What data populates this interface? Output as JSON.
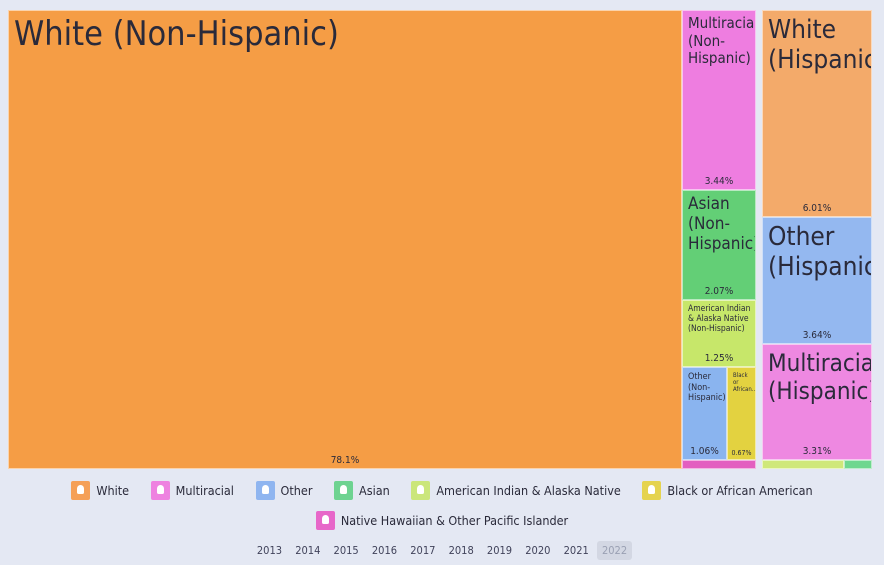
{
  "chart_data": {
    "type": "treemap",
    "cells": [
      {
        "label": "White (Non-Hispanic)",
        "value_label": "78.1%",
        "value": 78.1,
        "color": "#f59d45"
      },
      {
        "label": "Multiracial (Non-Hispanic)",
        "value_label": "3.44%",
        "value": 3.44,
        "color": "#ee7de0"
      },
      {
        "label": "Asian (Non-Hispanic)",
        "value_label": "2.07%",
        "value": 2.07,
        "color": "#63cf76"
      },
      {
        "label": "American Indian & Alaska Native (Non-Hispanic)",
        "value_label": "1.25%",
        "value": 1.25,
        "color": "#c7e76a"
      },
      {
        "label": "Other (Non-Hispanic)",
        "value_label": "1.06%",
        "value": 1.06,
        "color": "#8ab4ef"
      },
      {
        "label": "Black or African...",
        "value_label": "0.67%",
        "value": 0.67,
        "color": "#e3d240"
      },
      {
        "label": "",
        "value_label": "",
        "value": 0.2,
        "color": "#e35fc0"
      },
      {
        "label": "White (Hispanic)",
        "value_label": "6.01%",
        "value": 6.01,
        "color": "#f3aa6a"
      },
      {
        "label": "Other (Hispanic)",
        "value_label": "3.64%",
        "value": 3.64,
        "color": "#94b8f0"
      },
      {
        "label": "Multiracial (Hispanic)",
        "value_label": "3.31%",
        "value": 3.31,
        "color": "#ee88e1"
      },
      {
        "label": "",
        "value_label": "",
        "value": 0.2,
        "color": "#cfe87a"
      },
      {
        "label": "",
        "value_label": "",
        "value": 0.08,
        "color": "#6fd78f"
      }
    ]
  },
  "legend": [
    {
      "label": "White",
      "color": "#f5a057"
    },
    {
      "label": "Multiracial",
      "color": "#ee82e0"
    },
    {
      "label": "Other",
      "color": "#8fb5f0"
    },
    {
      "label": "Asian",
      "color": "#6ed391"
    },
    {
      "label": "American Indian & Alaska Native",
      "color": "#cbe67b"
    },
    {
      "label": "Black or African American",
      "color": "#e5d34f"
    },
    {
      "label": "Native Hawaiian & Other Pacific Islander",
      "color": "#e767c9"
    }
  ],
  "years": [
    "2013",
    "2014",
    "2015",
    "2016",
    "2017",
    "2018",
    "2019",
    "2020",
    "2021",
    "2022"
  ],
  "selected_year": "2022"
}
